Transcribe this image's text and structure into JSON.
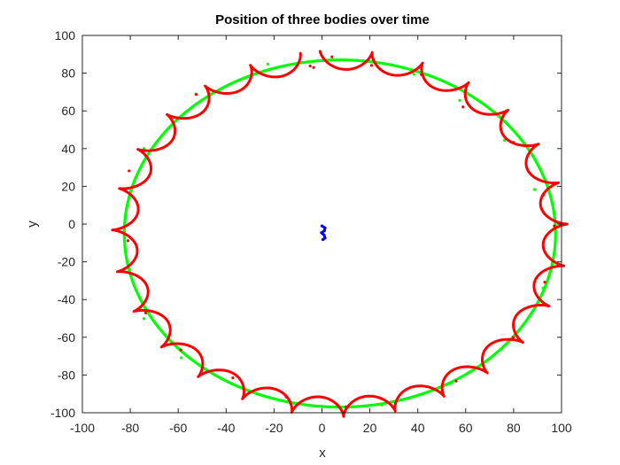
{
  "chart_data": {
    "type": "line",
    "title": "Position of three bodies over time",
    "xlabel": "x",
    "ylabel": "y",
    "xlim": [
      -100,
      100
    ],
    "ylim": [
      -100,
      100
    ],
    "x_ticks": [
      -100,
      -80,
      -60,
      -40,
      -20,
      0,
      20,
      40,
      60,
      80,
      100
    ],
    "y_ticks": [
      -100,
      -80,
      -60,
      -40,
      -20,
      0,
      20,
      40,
      60,
      80,
      100
    ],
    "grid": false,
    "box": true,
    "series": [
      {
        "color": "#00ff00",
        "description": "outer body, smooth elliptical orbit",
        "orbit": {
          "cx": 7.5,
          "cy": -5,
          "rx": 90,
          "ry": 92
        },
        "start_angle_deg": 95,
        "sweep_deg": -365,
        "points": [
          [
            -0.5,
            86.6
          ],
          [
            17.0,
            86.6
          ],
          [
            38.3,
            79.4
          ],
          [
            57.5,
            65.6
          ],
          [
            76.2,
            44.4
          ],
          [
            88.7,
            18.3
          ],
          [
            97.5,
            -5.0
          ],
          [
            92.3,
            -33.9
          ],
          [
            76.4,
            -64.2
          ],
          [
            53.7,
            -84.6
          ],
          [
            25.0,
            -95.9
          ],
          [
            7.5,
            -97.0
          ],
          [
            -14.2,
            -94.3
          ],
          [
            -37.5,
            -84.7
          ],
          [
            -58.7,
            -70.9
          ],
          [
            -74.3,
            -50.1
          ],
          [
            -82.5,
            -5.0
          ],
          [
            -74.3,
            40.1
          ],
          [
            -52.6,
            69.0
          ],
          [
            -22.6,
            84.8
          ],
          [
            -0.5,
            86.6
          ]
        ]
      },
      {
        "color": "#ff0000",
        "description": "middle body, orbit with loops around the outer body",
        "orbit": {
          "cx": 7.5,
          "cy": -5,
          "rx": 90,
          "ry": 92
        },
        "start_angle_deg": 95,
        "sweep_deg": -355,
        "epicycle": {
          "radius": 5.0,
          "cycles": 27
        },
        "points": [
          [
            -4.9,
            83.8
          ],
          [
            4.2,
            88.6
          ],
          [
            20.7,
            84.1
          ],
          [
            41.5,
            79.2
          ],
          [
            58.9,
            62.1
          ],
          [
            79.9,
            43.3
          ],
          [
            92.5,
            15.5
          ],
          [
            97.0,
            -1.0
          ],
          [
            93.0,
            -30.8
          ],
          [
            79.8,
            -60.1
          ],
          [
            56.0,
            -83.2
          ],
          [
            27.1,
            -94.2
          ],
          [
            10.0,
            -96.9
          ],
          [
            -14.9,
            -91.6
          ],
          [
            -37.2,
            -81.5
          ],
          [
            -58.9,
            -66.7
          ],
          [
            -73.6,
            -47.1
          ],
          [
            -81.0,
            -8.8
          ],
          [
            -80.5,
            28.2
          ],
          [
            -52.5,
            68.7
          ],
          [
            -3.5,
            83.0
          ]
        ]
      },
      {
        "color": "#0000ff",
        "description": "central body, small wobble near origin",
        "points": [
          [
            0.0,
            -1.0
          ],
          [
            1.3,
            -2.0
          ],
          [
            1.0,
            -3.6
          ],
          [
            -0.2,
            -4.6
          ],
          [
            0.9,
            -5.8
          ],
          [
            1.3,
            -7.4
          ],
          [
            0.4,
            -8.2
          ]
        ]
      }
    ]
  }
}
